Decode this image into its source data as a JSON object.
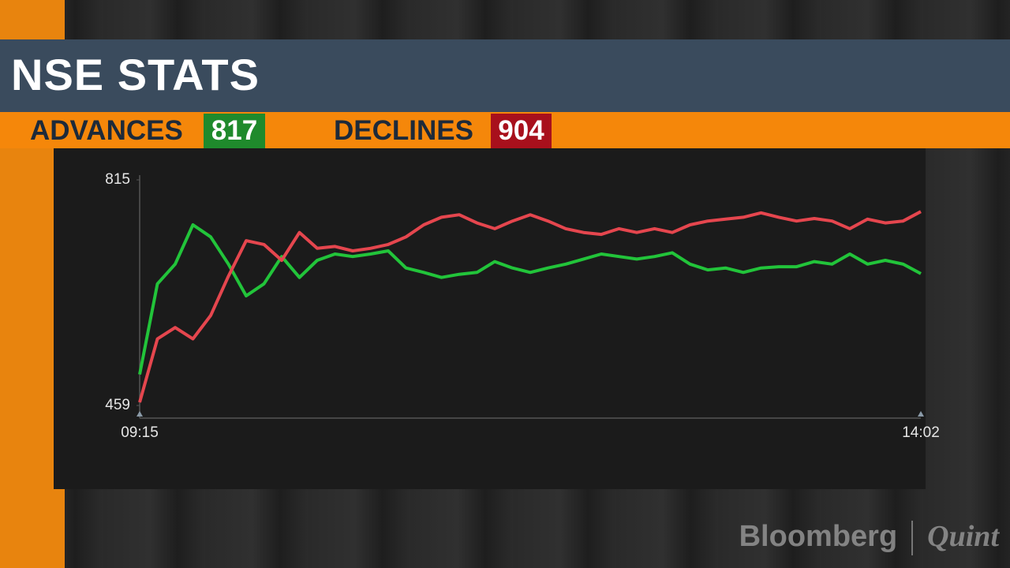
{
  "chart_data": {
    "type": "line",
    "title": "NSE STATS",
    "ylim": [
      459,
      815
    ],
    "yticks": [
      459,
      815
    ],
    "xticks": [
      "09:15",
      "14:02"
    ],
    "series": [
      {
        "name": "ADVANCES",
        "color": "#22c43a",
        "values": [
          508,
          651,
          682,
          744,
          725,
          682,
          632,
          651,
          694,
          661,
          688,
          698,
          694,
          698,
          703,
          676,
          669,
          661,
          666,
          669,
          686,
          676,
          669,
          676,
          682,
          690,
          698,
          694,
          690,
          694,
          700,
          682,
          673,
          676,
          669,
          676,
          678,
          678,
          686,
          682,
          698,
          682,
          688,
          682,
          667
        ]
      },
      {
        "name": "DECLINES",
        "color": "#e5464e",
        "values": [
          464,
          564,
          582,
          564,
          601,
          663,
          719,
          713,
          688,
          732,
          707,
          710,
          703,
          707,
          713,
          725,
          744,
          756,
          760,
          747,
          738,
          750,
          760,
          750,
          738,
          732,
          729,
          738,
          732,
          738,
          732,
          744,
          750,
          753,
          756,
          763,
          756,
          750,
          754,
          750,
          738,
          753,
          747,
          750,
          765
        ]
      }
    ]
  },
  "stats": {
    "advances": 817,
    "declines": 904,
    "advances_color": "#1f8a2c",
    "declines_color": "#a8101c"
  },
  "watermark": {
    "brand": "Bloomberg",
    "partner": "Quint"
  }
}
